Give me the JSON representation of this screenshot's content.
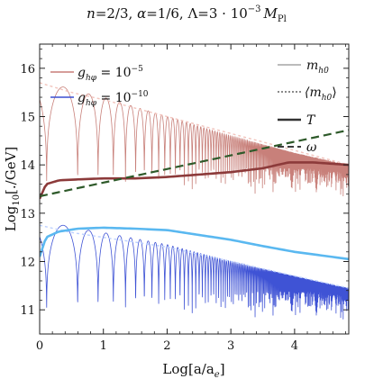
{
  "chart_data": {
    "type": "line",
    "title": "n=2/3, α=1/6, Λ=3 · 10⁻³ M_Pl",
    "title_parts": {
      "a": "n",
      "b": "=2/3, ",
      "c": "α",
      "d": "=1/6, Λ=3 · 10",
      "e": "−3",
      "f": "M",
      "g": "Pl"
    },
    "xlabel": "Log[a/a",
    "xlabel_sub": "e",
    "xlabel_end": "]",
    "ylabel": "Log",
    "ylabel_sub": "10",
    "ylabel_end": "[./GeV]",
    "xlim": [
      0,
      4.85
    ],
    "ylim": [
      10.5,
      16.5
    ],
    "xticks": [
      "0",
      "1",
      "2",
      "3",
      "4"
    ],
    "yticks": [
      "11",
      "12",
      "13",
      "14",
      "15",
      "16"
    ],
    "grid": false,
    "legend_left": [
      {
        "g": "g",
        "sub": "hφ",
        "eq": " = 10",
        "exp": "−5",
        "color": "#c87d78"
      },
      {
        "g": "g",
        "sub": "hφ",
        "eq": " = 10",
        "exp": "−10",
        "color": "#3a4fd0"
      }
    ],
    "legend_right": [
      {
        "label": "m",
        "sub": "h0",
        "style": "thin"
      },
      {
        "label": "⟨m",
        "sub": "h0",
        "label_end": "⟩",
        "style": "dotted"
      },
      {
        "label": "T",
        "sub": "",
        "style": "thick"
      },
      {
        "label": "ω",
        "sub": "",
        "style": "dashed"
      }
    ],
    "series": [
      {
        "name": "g_hφ = 10⁻⁵, m_h0",
        "color": "#c8807a",
        "style": "oscillating",
        "upper": [
          [
            0,
            15.8
          ],
          [
            0.5,
            15.55
          ],
          [
            1,
            15.4
          ],
          [
            2,
            15.0
          ],
          [
            3,
            14.6
          ],
          [
            4,
            14.25
          ],
          [
            4.85,
            14.0
          ]
        ],
        "lower_floor": 13.1
      },
      {
        "name": "g_hφ = 10⁻⁵, ⟨m_h0⟩",
        "color": "#f2c4bd",
        "style": "dotted",
        "points": [
          [
            0,
            15.7
          ],
          [
            0.5,
            15.5
          ],
          [
            1,
            15.35
          ],
          [
            2,
            15.0
          ],
          [
            3,
            14.65
          ],
          [
            4,
            14.3
          ],
          [
            4.85,
            14.0
          ]
        ]
      },
      {
        "name": "g_hφ = 10⁻⁵, T",
        "color": "#8c3a3a",
        "style": "thick",
        "points": [
          [
            0,
            13.3
          ],
          [
            0.1,
            13.6
          ],
          [
            0.3,
            13.68
          ],
          [
            0.6,
            13.7
          ],
          [
            1,
            13.72
          ],
          [
            1.5,
            13.72
          ],
          [
            2,
            13.75
          ],
          [
            2.5,
            13.8
          ],
          [
            3,
            13.85
          ],
          [
            3.5,
            13.93
          ],
          [
            3.9,
            14.05
          ],
          [
            4.3,
            14.05
          ],
          [
            4.85,
            14.0
          ]
        ]
      },
      {
        "name": "ω",
        "color": "#2e5a2a",
        "style": "dashed",
        "points": [
          [
            0,
            13.35
          ],
          [
            4.85,
            14.72
          ]
        ]
      },
      {
        "name": "g_hφ = 10⁻¹⁰, m_h0",
        "color": "#3f53d5",
        "style": "oscillating",
        "upper": [
          [
            0,
            12.9
          ],
          [
            0.5,
            12.7
          ],
          [
            1,
            12.6
          ],
          [
            2,
            12.35
          ],
          [
            3,
            12.0
          ],
          [
            4,
            11.7
          ],
          [
            4.85,
            11.45
          ]
        ],
        "lower_floor": 10.55
      },
      {
        "name": "g_hφ = 10⁻¹⁰, ⟨m_h0⟩",
        "color": "#bcd0ff",
        "style": "dotted",
        "points": [
          [
            0,
            12.75
          ],
          [
            0.5,
            12.6
          ],
          [
            1,
            12.5
          ],
          [
            2,
            12.3
          ],
          [
            3,
            12.0
          ],
          [
            4,
            11.7
          ],
          [
            4.85,
            11.45
          ]
        ]
      },
      {
        "name": "g_hφ = 10⁻¹⁰, T",
        "color": "#5ab8f0",
        "style": "thick",
        "points": [
          [
            0,
            12.1
          ],
          [
            0.1,
            12.5
          ],
          [
            0.3,
            12.62
          ],
          [
            0.6,
            12.68
          ],
          [
            1,
            12.7
          ],
          [
            1.5,
            12.68
          ],
          [
            2,
            12.65
          ],
          [
            2.5,
            12.55
          ],
          [
            3,
            12.45
          ],
          [
            3.5,
            12.32
          ],
          [
            4,
            12.2
          ],
          [
            4.85,
            12.05
          ]
        ]
      }
    ]
  }
}
